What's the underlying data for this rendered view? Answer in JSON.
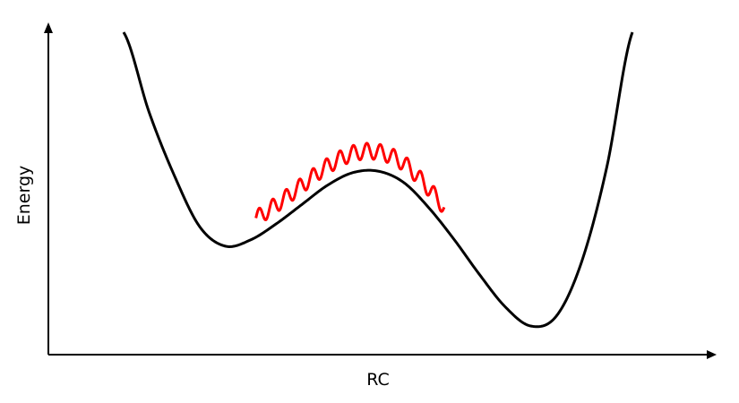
{
  "chart_data": {
    "type": "line",
    "xlabel": "RC",
    "ylabel": "Energy",
    "grid": false,
    "series": [
      {
        "key": "potential",
        "color": "#000000",
        "x": [
          0.0,
          0.05,
          0.1,
          0.15,
          0.2,
          0.25,
          0.3,
          0.35,
          0.4,
          0.45,
          0.5,
          0.55,
          0.6,
          0.65,
          0.7,
          0.75,
          0.8,
          0.85,
          0.9,
          0.95,
          1.0
        ],
        "y": [
          1.0,
          0.75,
          0.55,
          0.39,
          0.33,
          0.35,
          0.4,
          0.46,
          0.52,
          0.56,
          0.565,
          0.53,
          0.45,
          0.35,
          0.24,
          0.14,
          0.08,
          0.11,
          0.28,
          0.58,
          1.0
        ]
      },
      {
        "key": "perturbation",
        "color": "#ff0000",
        "x_start": 0.26,
        "x_end": 0.63,
        "offset": 0.06,
        "amplitude": 0.025,
        "oscillations": 14
      }
    ]
  }
}
